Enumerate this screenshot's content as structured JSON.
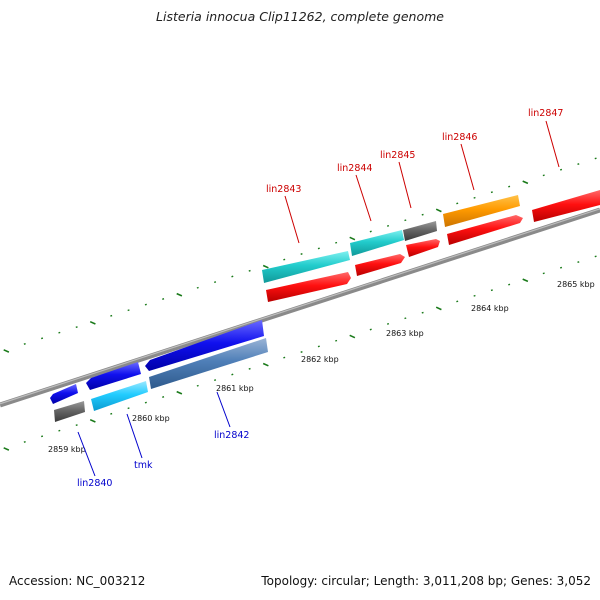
{
  "title": "Listeria innocua Clip11262, complete genome",
  "accession": "Accession: NC_003212",
  "summary": "Topology: circular; Length: 3,011,208 bp; Genes: 3,052",
  "colors": {
    "forward_label": "#cc0000",
    "reverse_label": "#0000cc",
    "tick": "#1a7a1a",
    "backbone": "#8a8a8a"
  },
  "scale_labels": [
    "2859 kbp",
    "2860 kbp",
    "2861 kbp",
    "2862 kbp",
    "2863 kbp",
    "2864 kbp",
    "2865 kbp"
  ],
  "gene_labels": {
    "lin2840": "lin2840",
    "tmk": "tmk",
    "lin2842": "lin2842",
    "lin2843": "lin2843",
    "lin2844": "lin2844",
    "lin2845": "lin2845",
    "lin2846": "lin2846",
    "lin2847": "lin2847"
  }
}
